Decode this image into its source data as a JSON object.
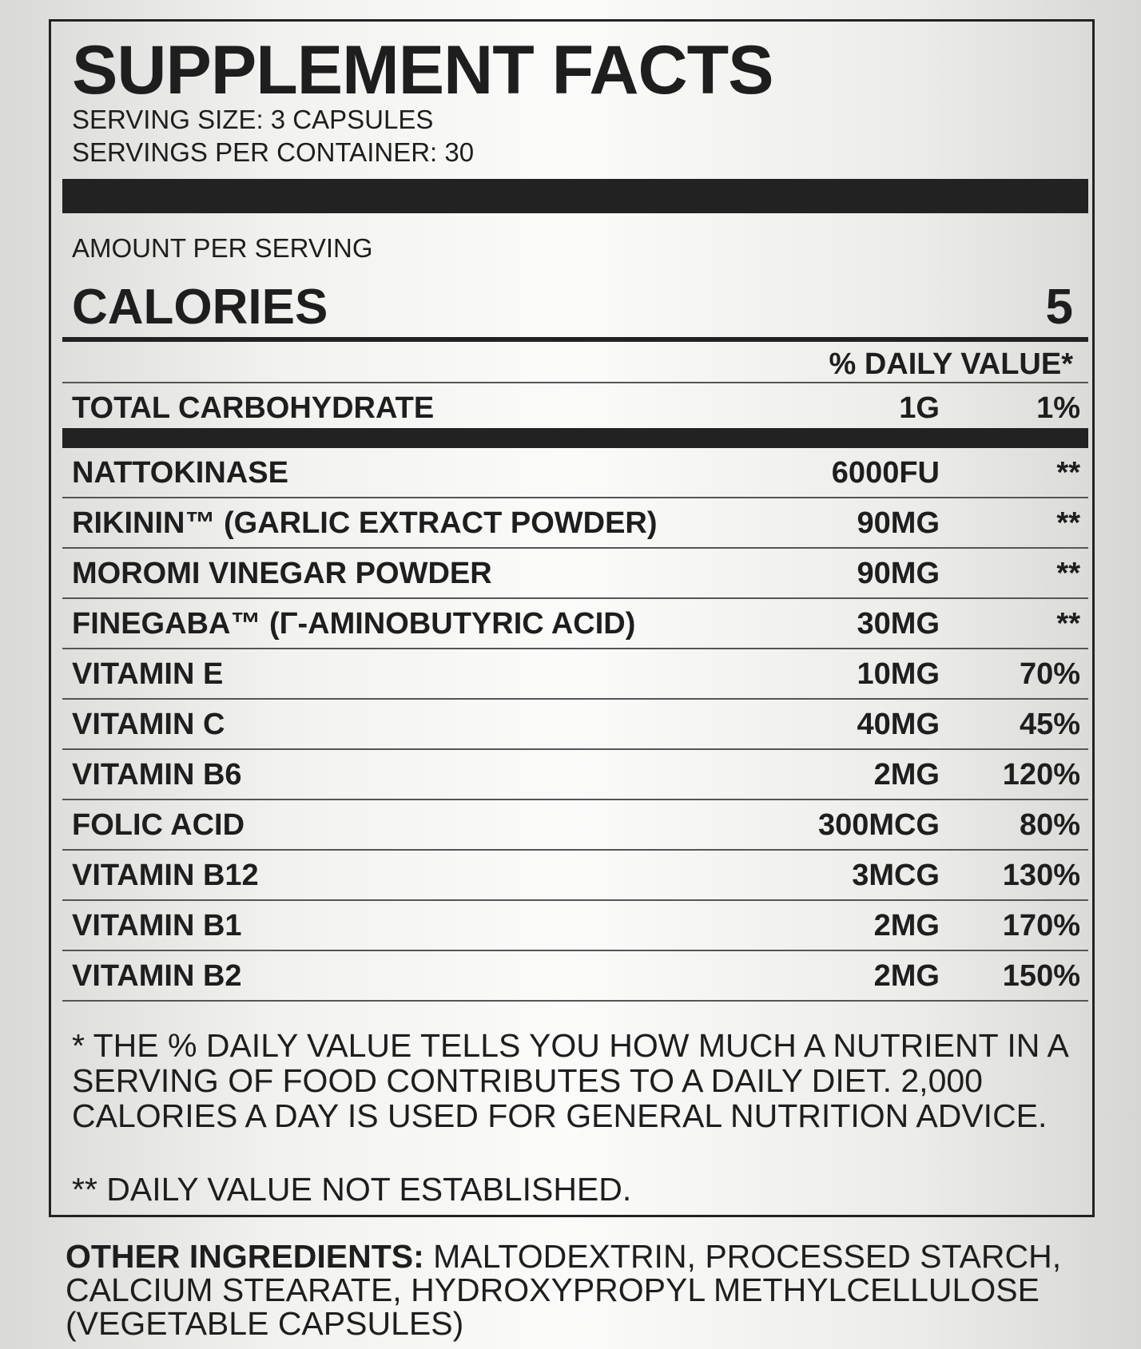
{
  "title": "SUPPLEMENT FACTS",
  "serving_size": "SERVING SIZE: 3 CAPSULES",
  "servings_per_container": "SERVINGS PER CONTAINER: 30",
  "amount_per_serving": "AMOUNT PER SERVING",
  "calories_label": "CALORIES",
  "calories_value": "5",
  "daily_value_header": "% DAILY VALUE*",
  "total_carb": {
    "name": "TOTAL CARBOHYDRATE",
    "amount": "1G",
    "dv": "1%"
  },
  "ingredients": [
    {
      "name": "NATTOKINASE",
      "amount": "6000FU",
      "dv": "**"
    },
    {
      "name": "RIKININ™ (GARLIC EXTRACT POWDER)",
      "amount": "90MG",
      "dv": "**"
    },
    {
      "name": "MOROMI VINEGAR POWDER",
      "amount": "90MG",
      "dv": "**"
    },
    {
      "name": "FINEGABA™ (Γ-AMINOBUTYRIC ACID)",
      "amount": "30MG",
      "dv": "**"
    },
    {
      "name": "VITAMIN E",
      "amount": "10MG",
      "dv": "70%"
    },
    {
      "name": "VITAMIN C",
      "amount": "40MG",
      "dv": "45%"
    },
    {
      "name": "VITAMIN B6",
      "amount": "2MG",
      "dv": "120%"
    },
    {
      "name": "FOLIC ACID",
      "amount": "300MCG",
      "dv": "80%"
    },
    {
      "name": "VITAMIN B12",
      "amount": "3MCG",
      "dv": "130%"
    },
    {
      "name": "VITAMIN B1",
      "amount": "2MG",
      "dv": "170%"
    },
    {
      "name": "VITAMIN B2",
      "amount": "2MG",
      "dv": "150%"
    }
  ],
  "footnote_1": "* THE % DAILY VALUE TELLS YOU HOW MUCH A NUTRIENT IN A SERVING OF FOOD CONTRIBUTES TO A DAILY DIET. 2,000 CALORIES A DAY IS USED FOR GENERAL NUTRITION ADVICE.",
  "footnote_2": "** DAILY VALUE NOT ESTABLISHED.",
  "other_ingredients_label": "OTHER INGREDIENTS:",
  "other_ingredients": " MALTODEXTRIN, PROCESSED STARCH, CALCIUM STEARATE, HYDROXYPROPYL METHYLCELLULOSE (VEGETABLE CAPSULES)"
}
